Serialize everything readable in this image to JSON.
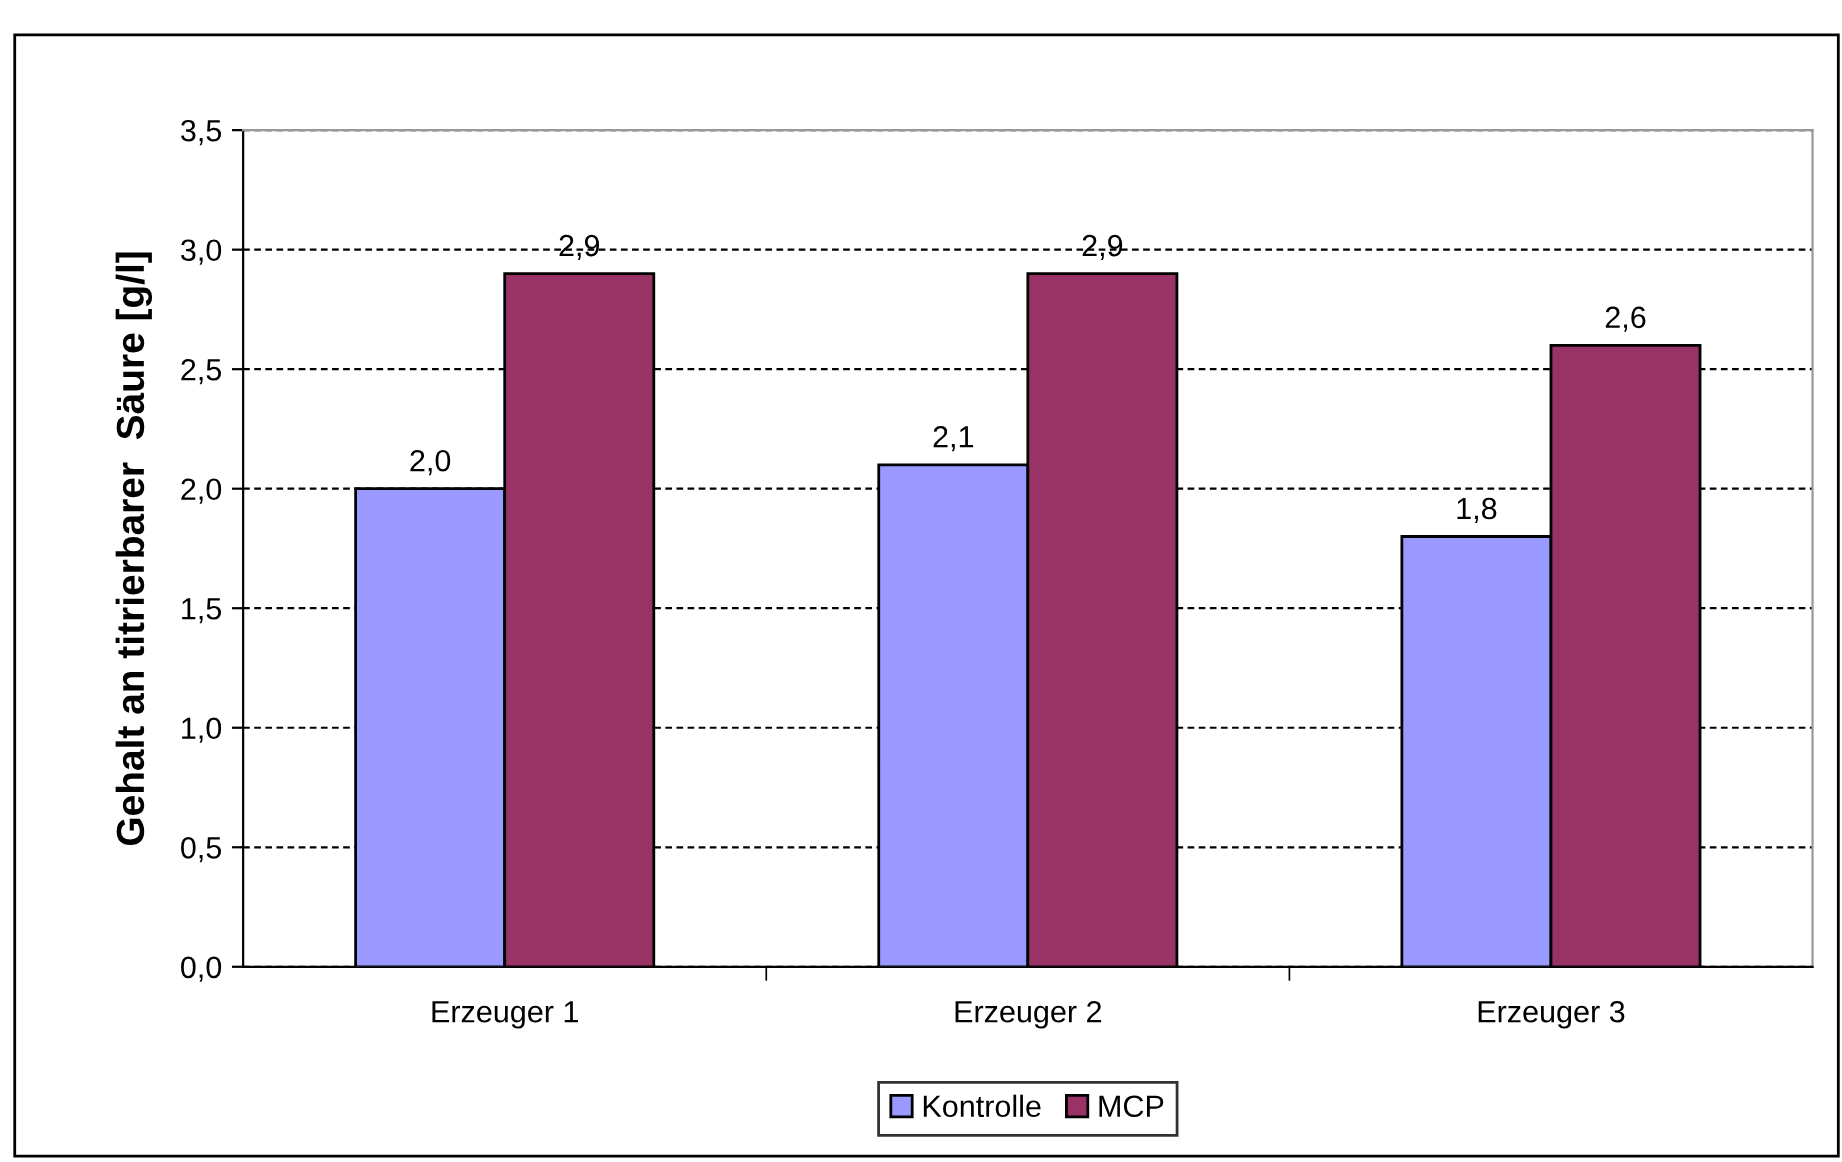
{
  "chart_data": {
    "type": "bar",
    "ylabel": "Gehalt an titrierbarer  Säure [g/l]",
    "categories": [
      "Erzeuger 1",
      "Erzeuger 2",
      "Erzeuger 3"
    ],
    "series": [
      {
        "name": "Kontrolle",
        "color": "#9999ff",
        "values": [
          2.0,
          2.1,
          1.8
        ],
        "value_labels": [
          "2,0",
          "2,1",
          "1,8"
        ]
      },
      {
        "name": "MCP",
        "color": "#993366",
        "values": [
          2.9,
          2.9,
          2.6
        ],
        "value_labels": [
          "2,9",
          "2,9",
          "2,6"
        ]
      }
    ],
    "ylim": [
      0,
      3.5
    ],
    "yticks": [
      {
        "value": 0,
        "label": "0,0"
      },
      {
        "value": 0.5,
        "label": "0,5"
      },
      {
        "value": 1,
        "label": "1,0"
      },
      {
        "value": 1.5,
        "label": "1,5"
      },
      {
        "value": 2,
        "label": "2,0"
      },
      {
        "value": 2.5,
        "label": "2,5"
      },
      {
        "value": 3,
        "label": "3,0"
      },
      {
        "value": 3.5,
        "label": "3,5"
      }
    ],
    "grid": "y",
    "legend": "bottom"
  }
}
